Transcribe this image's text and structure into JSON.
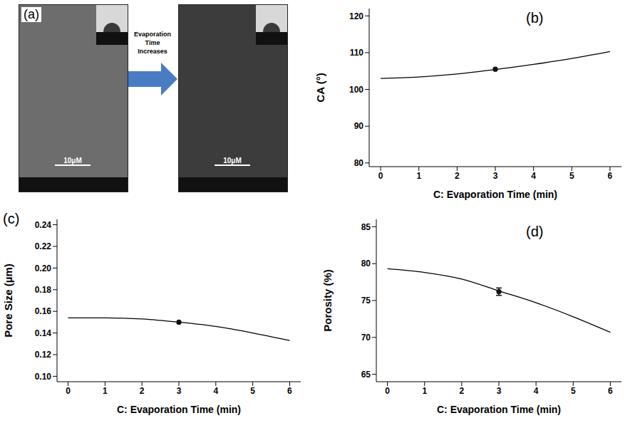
{
  "panel_a": {
    "annotation": "(a)",
    "arrow_label": "Evaporation Time Increases",
    "scale_bar_labels": [
      "10μM",
      "10μM"
    ]
  },
  "chart_data": [
    {
      "type": "line",
      "annotation": "(b)",
      "xlabel": "C: Evaporation Time (min)",
      "ylabel": "CA (°)",
      "x": [
        0,
        1,
        2,
        3,
        4,
        5,
        6
      ],
      "xlim": [
        -0.3,
        6.3
      ],
      "xticks": [
        0,
        1,
        2,
        3,
        4,
        5,
        6
      ],
      "ylim": [
        79,
        122
      ],
      "yticks": [
        80,
        90,
        100,
        110,
        120
      ],
      "grid": false,
      "series": [
        {
          "type": "line",
          "color": "#000000",
          "marker": "none",
          "line_style": "solid",
          "values": [
            103,
            103.4,
            104.2,
            105.4,
            106.8,
            108.4,
            110.3
          ]
        },
        {
          "type": "scatter",
          "color": "#111111",
          "marker": "circle",
          "values": [
            null,
            null,
            null,
            105.5,
            null,
            null,
            null
          ]
        }
      ]
    },
    {
      "type": "line",
      "annotation": "(c)",
      "xlabel": "C: Evaporation Time (min)",
      "ylabel": "Pore Size (µm)",
      "x": [
        0,
        1,
        2,
        3,
        4,
        5,
        6
      ],
      "xlim": [
        -0.3,
        6.3
      ],
      "xticks": [
        0,
        1,
        2,
        3,
        4,
        5,
        6
      ],
      "ylim": [
        0.095,
        0.245
      ],
      "yticks": [
        {
          "value": 0.1,
          "label": "0.10"
        },
        0.12,
        0.14,
        0.16,
        0.18,
        {
          "value": 0.2,
          "label": "0.20"
        },
        0.22,
        0.24
      ],
      "grid": false,
      "series": [
        {
          "type": "line",
          "color": "#000000",
          "marker": "none",
          "line_style": "solid",
          "values": [
            0.154,
            0.154,
            0.153,
            0.15,
            0.146,
            0.14,
            0.133
          ]
        },
        {
          "type": "scatter",
          "color": "#111111",
          "marker": "circle",
          "values": [
            null,
            null,
            null,
            0.15,
            null,
            null,
            null
          ]
        }
      ]
    },
    {
      "type": "line",
      "annotation": "(d)",
      "xlabel": "C: Evaporation Time (min)",
      "ylabel": "Porosity (%)",
      "x": [
        0,
        1,
        2,
        3,
        4,
        5,
        6
      ],
      "xlim": [
        -0.3,
        6.3
      ],
      "xticks": [
        0,
        1,
        2,
        3,
        4,
        5,
        6
      ],
      "ylim": [
        64,
        86
      ],
      "yticks": [
        65,
        70,
        75,
        80,
        85
      ],
      "grid": false,
      "series": [
        {
          "type": "line",
          "color": "#000000",
          "marker": "none",
          "line_style": "solid",
          "values": [
            79.3,
            78.8,
            77.9,
            76.3,
            74.7,
            72.8,
            70.7
          ]
        },
        {
          "type": "scatter",
          "color": "#111111",
          "marker": "circle",
          "values": [
            null,
            null,
            null,
            76.2,
            null,
            null,
            null
          ],
          "errors": [
            null,
            null,
            null,
            0.5,
            null,
            null,
            null
          ]
        }
      ]
    }
  ]
}
